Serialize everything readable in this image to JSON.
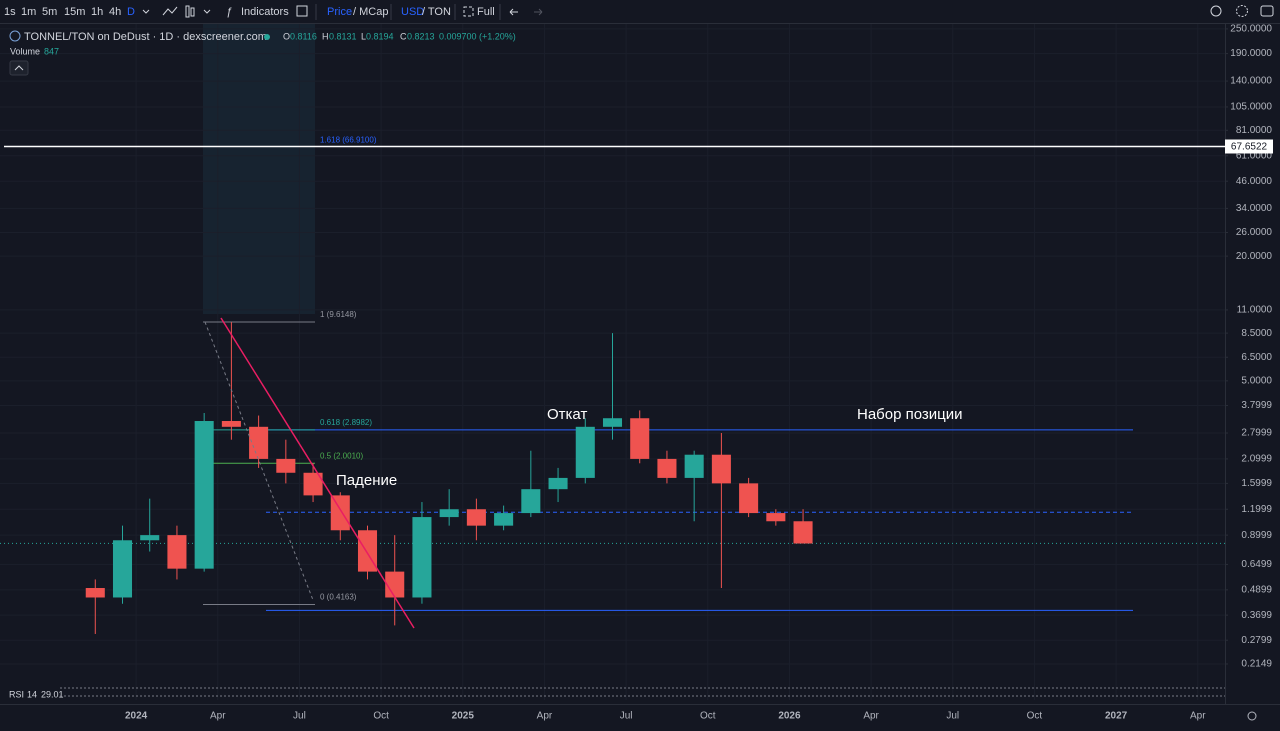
{
  "toolbar": {
    "intervals": [
      "1s",
      "1m",
      "5m",
      "15m",
      "1h",
      "4h",
      "D"
    ],
    "indicators": "Indicators",
    "price_mode": [
      "Price",
      "/ MCap"
    ],
    "currency": [
      "USD",
      "/ TON"
    ],
    "full": "Full"
  },
  "legend": {
    "symbol": "TONNEL/TON on DeDust · 1D · dexscreener.com",
    "open_label": "O",
    "open": "0.8116",
    "high_label": "H",
    "high": "0.8131",
    "low_label": "L",
    "low": "0.8194",
    "close_label": "C",
    "close": "0.8213",
    "change": "0.009700 (+1.20%)",
    "volume_label": "Volume",
    "volume": "847",
    "rsi_label": "RSI",
    "rsi_period": "14",
    "rsi_value": "29.01"
  },
  "chart_data": {
    "type": "candlestick",
    "log_scale": true,
    "up_color": "#26a69a",
    "down_color": "#ef5350",
    "x": [
      "2023-11",
      "2023-12",
      "2024-01",
      "2024-02",
      "2024-03",
      "2024-04",
      "2024-05",
      "2024-06",
      "2024-07",
      "2024-08",
      "2024-09",
      "2024-10",
      "2024-11",
      "2024-12",
      "2025-01",
      "2025-02",
      "2025-03",
      "2025-04",
      "2025-05",
      "2025-06",
      "2025-07",
      "2025-08",
      "2025-09",
      "2025-10",
      "2025-11",
      "2025-12",
      "2026-01"
    ],
    "open": [
      0.5,
      0.45,
      0.85,
      0.9,
      0.62,
      3.2,
      3.0,
      2.1,
      1.8,
      1.4,
      0.95,
      0.6,
      0.45,
      1.1,
      1.2,
      1.0,
      1.15,
      1.5,
      1.7,
      3.0,
      3.3,
      2.1,
      1.7,
      2.2,
      1.6,
      1.15,
      1.05
    ],
    "high": [
      0.55,
      1.0,
      1.35,
      1.0,
      3.5,
      9.6,
      3.4,
      2.6,
      2.0,
      1.45,
      1.0,
      0.9,
      1.3,
      1.5,
      1.35,
      1.25,
      2.3,
      1.9,
      3.3,
      8.5,
      3.6,
      2.3,
      2.3,
      2.8,
      1.7,
      1.2,
      1.2
    ],
    "low": [
      0.3,
      0.42,
      0.75,
      0.55,
      0.6,
      2.6,
      1.9,
      1.6,
      1.3,
      0.85,
      0.55,
      0.33,
      0.42,
      1.0,
      0.85,
      0.95,
      1.1,
      1.3,
      1.6,
      2.6,
      2.0,
      1.6,
      1.05,
      0.5,
      1.1,
      1.0,
      0.82
    ],
    "close": [
      0.45,
      0.85,
      0.9,
      0.62,
      3.2,
      3.0,
      2.1,
      1.8,
      1.4,
      0.95,
      0.6,
      0.45,
      1.1,
      1.2,
      1.0,
      1.15,
      1.5,
      1.7,
      3.0,
      3.3,
      2.1,
      1.7,
      2.2,
      1.6,
      1.15,
      1.05,
      0.82
    ],
    "xlim": [
      "2023-08",
      "2027-05"
    ],
    "xticks": [
      {
        "value": "2024-01",
        "label": "2024"
      },
      {
        "value": "2024-04",
        "label": "Apr"
      },
      {
        "value": "2024-07",
        "label": "Jul"
      },
      {
        "value": "2024-10",
        "label": "Oct"
      },
      {
        "value": "2025-01",
        "label": "2025"
      },
      {
        "value": "2025-04",
        "label": "Apr"
      },
      {
        "value": "2025-07",
        "label": "Jul"
      },
      {
        "value": "2025-10",
        "label": "Oct"
      },
      {
        "value": "2026-01",
        "label": "2026"
      },
      {
        "value": "2026-04",
        "label": "Apr"
      },
      {
        "value": "2026-07",
        "label": "Jul"
      },
      {
        "value": "2026-10",
        "label": "Oct"
      },
      {
        "value": "2027-01",
        "label": "2027"
      },
      {
        "value": "2027-04",
        "label": "Apr"
      }
    ],
    "ylim": [
      0.144,
      264
    ],
    "yticks": [
      {
        "value": 250,
        "label": "250.0000"
      },
      {
        "value": 190,
        "label": "190.0000"
      },
      {
        "value": 140,
        "label": "140.0000"
      },
      {
        "value": 105,
        "label": "105.0000"
      },
      {
        "value": 81,
        "label": "81.0000"
      },
      {
        "value": 61,
        "label": "61.0000"
      },
      {
        "value": 46,
        "label": "46.0000"
      },
      {
        "value": 34,
        "label": "34.0000"
      },
      {
        "value": 26,
        "label": "26.0000"
      },
      {
        "value": 20,
        "label": "20.0000"
      },
      {
        "value": 11,
        "label": "11.0000"
      },
      {
        "value": 8.5,
        "label": "8.5000"
      },
      {
        "value": 6.5,
        "label": "6.5000"
      },
      {
        "value": 5,
        "label": "5.0000"
      },
      {
        "value": 3.7999,
        "label": "3.7999"
      },
      {
        "value": 2.7999,
        "label": "2.7999"
      },
      {
        "value": 2.0999,
        "label": "2.0999"
      },
      {
        "value": 1.5999,
        "label": "1.5999"
      },
      {
        "value": 1.1999,
        "label": "1.1999"
      },
      {
        "value": 0.8999,
        "label": "0.8999"
      },
      {
        "value": 0.6499,
        "label": "0.6499"
      },
      {
        "value": 0.4899,
        "label": "0.4899"
      },
      {
        "value": 0.3699,
        "label": "0.3699"
      },
      {
        "value": 0.2799,
        "label": "0.2799"
      },
      {
        "value": 0.2149,
        "label": "0.2149"
      }
    ],
    "price_line": 67.6522,
    "last_price": 0.8213,
    "fib_levels": [
      {
        "value": 66.91,
        "label": "1.618 (66.9100)"
      },
      {
        "value": 9.6148,
        "label": "1 (9.6148)"
      },
      {
        "value": 2.8982,
        "label": "0.618 (2.8982)"
      },
      {
        "value": 2.001,
        "label": "0.5 (2.0010)"
      },
      {
        "value": 0.4163,
        "label": "0 (0.4163)"
      }
    ],
    "horizontal_lines": [
      {
        "value": 2.8982,
        "style": "solid",
        "color": "#2962ff"
      },
      {
        "value": 1.16,
        "style": "dashed",
        "color": "#2962ff"
      },
      {
        "value": 0.39,
        "style": "solid",
        "color": "#2962ff"
      }
    ],
    "annotations": [
      "Падение",
      "Откат",
      "Набор позиции"
    ]
  }
}
